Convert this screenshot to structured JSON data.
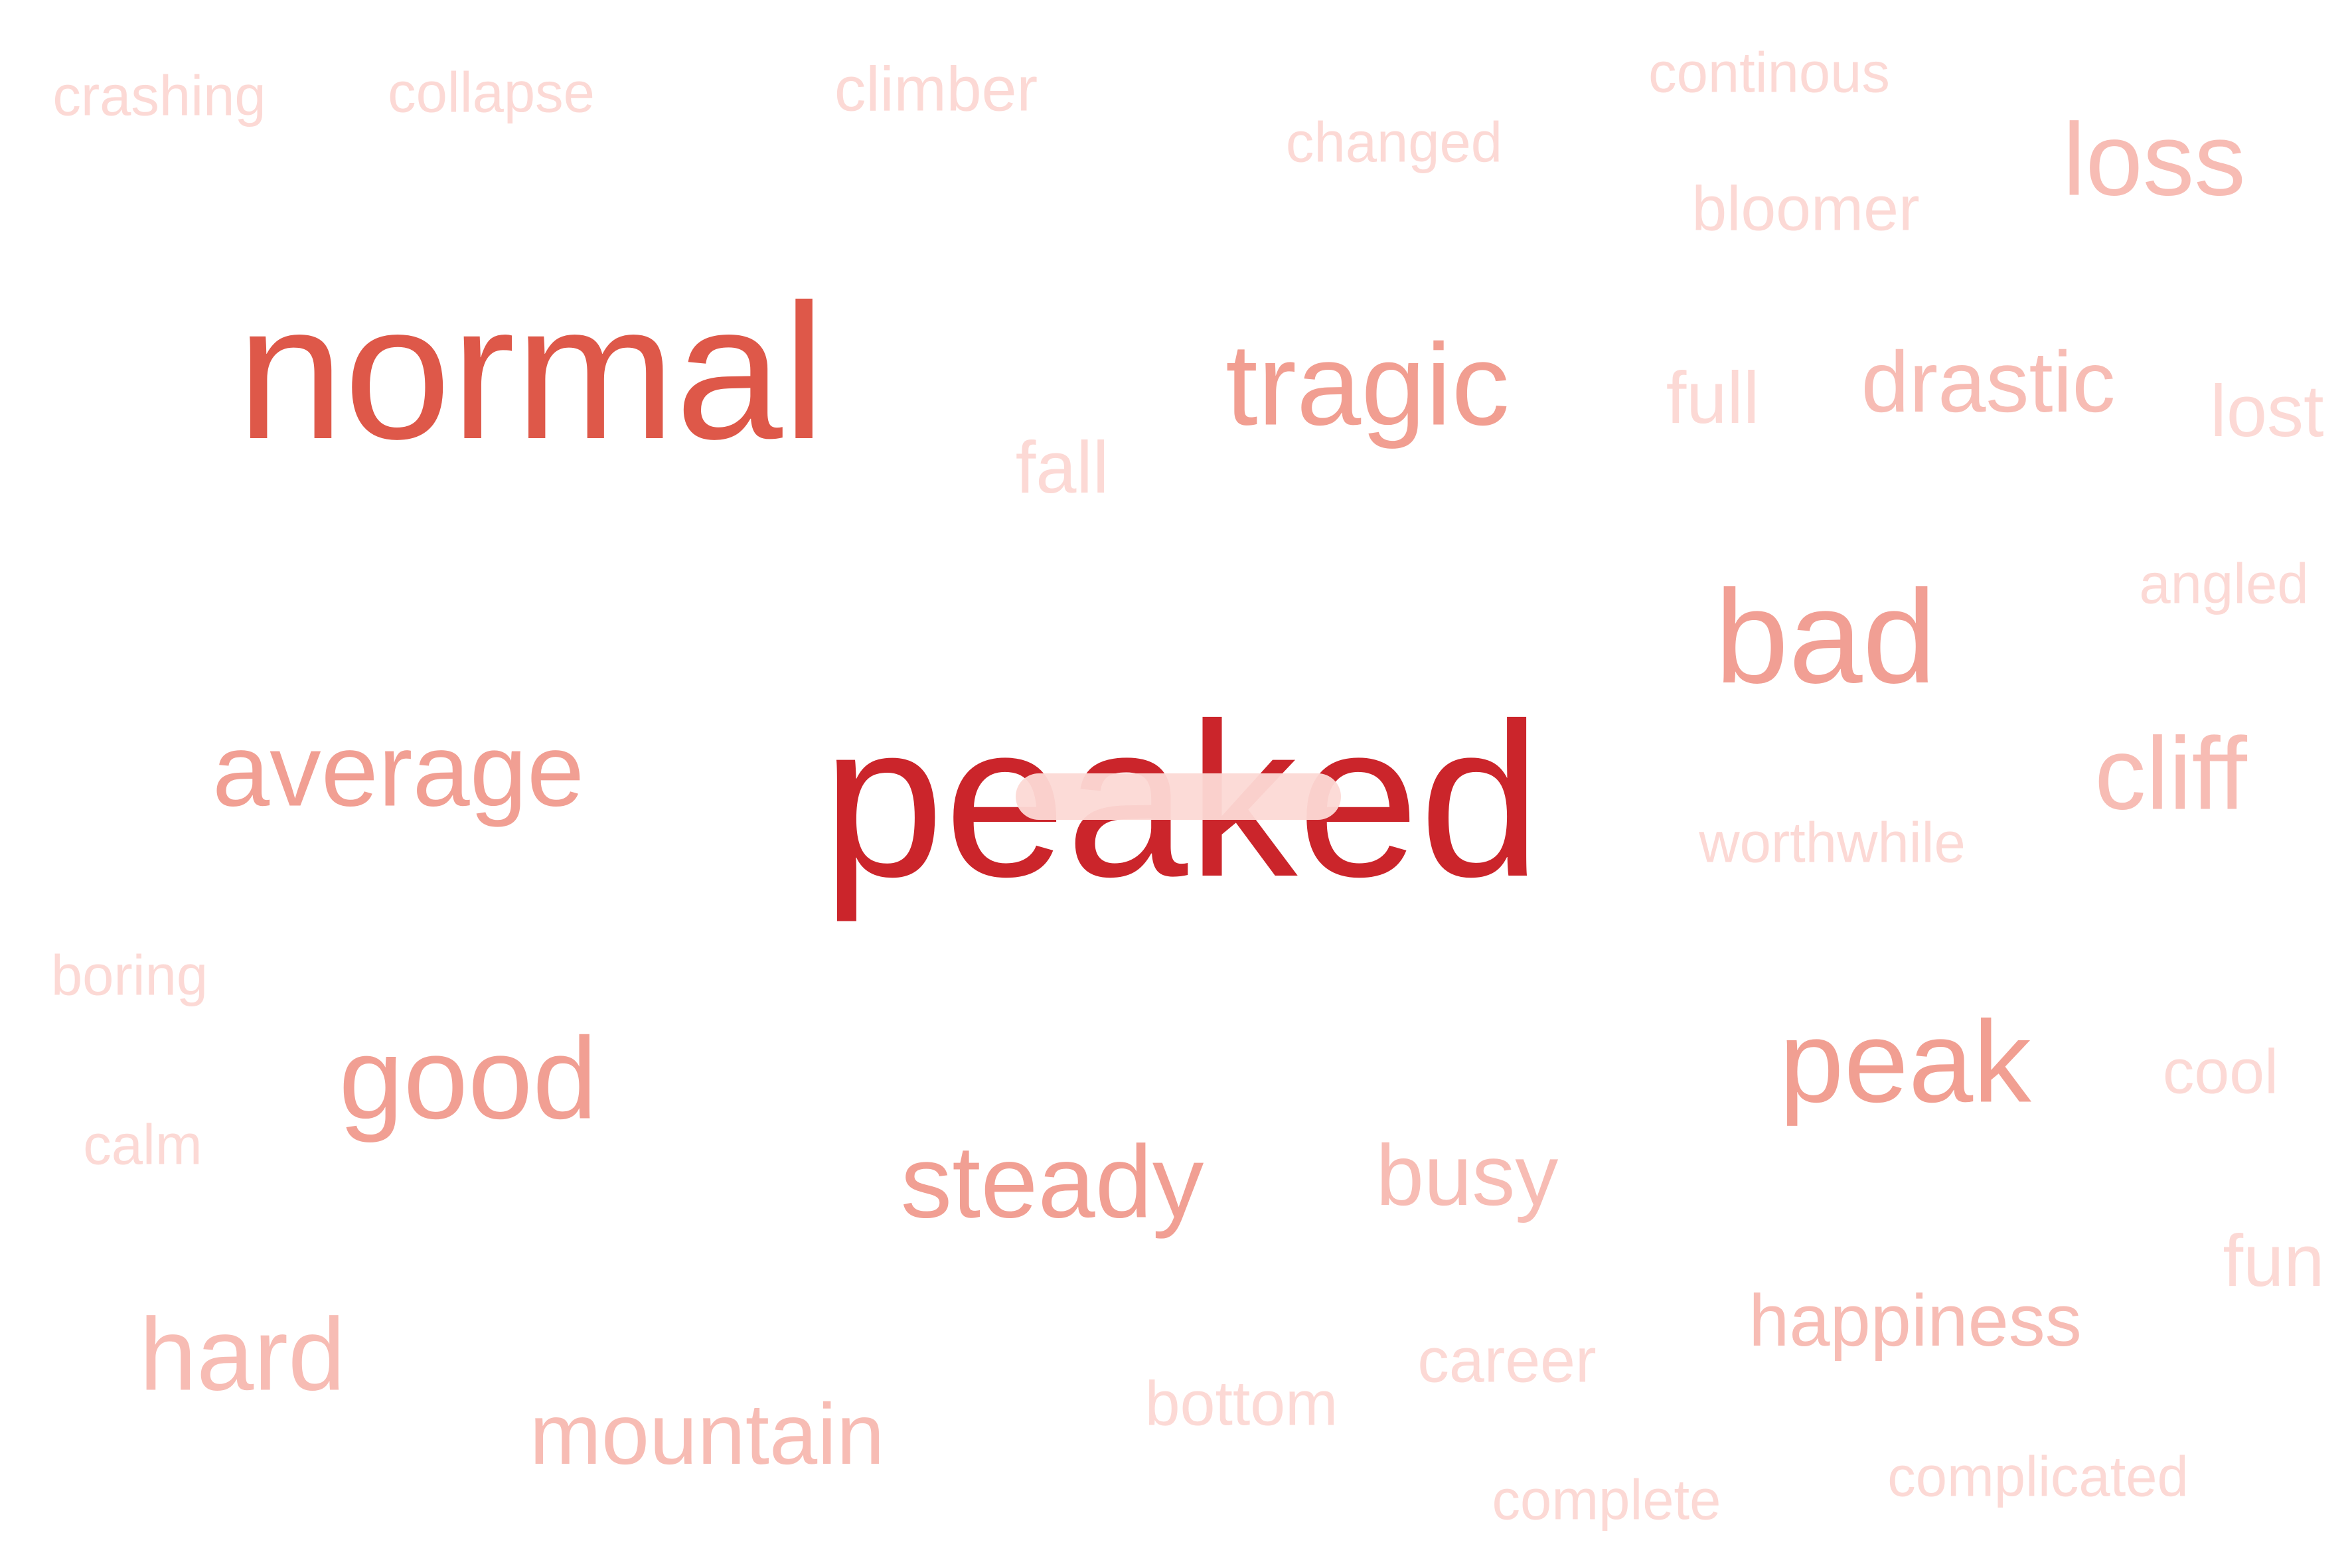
{
  "cloud": {
    "words": {
      "peaked": {
        "text": "peaked",
        "color": "#cb252b"
      },
      "normal": {
        "text": "normal",
        "color": "#de5849"
      },
      "bad": {
        "text": "bad",
        "color": "#f19f94"
      },
      "tragic": {
        "text": "tragic",
        "color": "#f19e91"
      },
      "peak": {
        "text": "peak",
        "color": "#f19f92"
      },
      "good": {
        "text": "good",
        "color": "#f19f93"
      },
      "average": {
        "text": "average",
        "color": "#f19f93"
      },
      "steady": {
        "text": "steady",
        "color": "#f19f93"
      },
      "drastic": {
        "text": "drastic",
        "color": "#f7bcb4"
      },
      "loss": {
        "text": "loss",
        "color": "#f7bcb4"
      },
      "cliff": {
        "text": "cliff",
        "color": "#f7bcb4"
      },
      "hard": {
        "text": "hard",
        "color": "#f7bcb4"
      },
      "busy": {
        "text": "busy",
        "color": "#f7bcb4"
      },
      "mountain": {
        "text": "mountain",
        "color": "#f7bcb4"
      },
      "happiness": {
        "text": "happiness",
        "color": "#f7bcb4"
      },
      "full": {
        "text": "full",
        "color": "#fcd9d5"
      },
      "fall": {
        "text": "fall",
        "color": "#fcd9d5"
      },
      "lost": {
        "text": "lost",
        "color": "#fcd9d5"
      },
      "bloomer": {
        "text": "bloomer",
        "color": "#fcd9d5"
      },
      "career": {
        "text": "career",
        "color": "#fcd9d5"
      },
      "bottom": {
        "text": "bottom",
        "color": "#fcd9d5"
      },
      "climber": {
        "text": "climber",
        "color": "#fcd9d5"
      },
      "collapse": {
        "text": "collapse",
        "color": "#fcd9d5"
      },
      "crashing": {
        "text": "crashing",
        "color": "#fcd9d5"
      },
      "changed": {
        "text": "changed",
        "color": "#fcd9d5"
      },
      "continous": {
        "text": "continous",
        "color": "#fcd9d5"
      },
      "angled": {
        "text": "angled",
        "color": "#fcd9d5"
      },
      "worthwhile": {
        "text": "worthwhile",
        "color": "#fcd9d5"
      },
      "boring": {
        "text": "boring",
        "color": "#fcd9d5"
      },
      "calm": {
        "text": "calm",
        "color": "#fcd9d5"
      },
      "cool": {
        "text": "cool",
        "color": "#fcd9d5"
      },
      "fun": {
        "text": "fun",
        "color": "#fcd9d5"
      },
      "complicated": {
        "text": "complicated",
        "color": "#fcd9d5"
      },
      "complete": {
        "text": "complete",
        "color": "#fcd9d5"
      }
    }
  }
}
